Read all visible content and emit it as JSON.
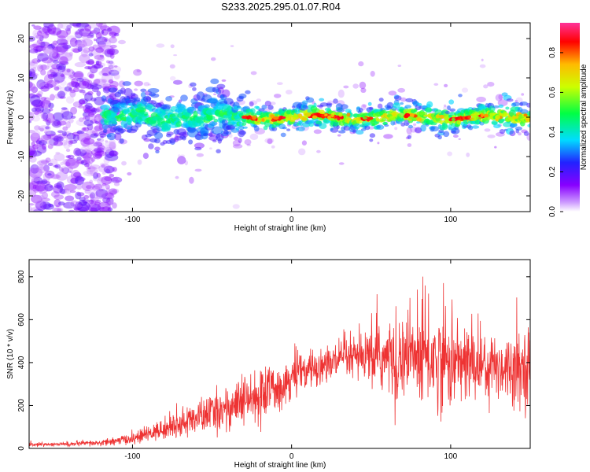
{
  "title": "S233.2025.295.01.07.R04",
  "chart_data": [
    {
      "type": "heatmap",
      "xlabel": "Height of straight line (km)",
      "ylabel": "Frequency (Hz)",
      "xlim": [
        -165,
        150
      ],
      "ylim": [
        -24,
        24
      ],
      "xticks": [
        -100,
        0,
        100
      ],
      "yticks": [
        -20,
        -10,
        0,
        10,
        20
      ],
      "colorbar": {
        "label": "Normalized spectral amplitude",
        "range": [
          0,
          0.95
        ],
        "ticks": [
          "0.0",
          "0.2",
          "0.4",
          "0.6",
          "0.8"
        ],
        "tick_values": [
          0,
          0.2,
          0.4,
          0.6,
          0.8
        ],
        "colormap": [
          "#ffffff",
          "#8800ff",
          "#2222ff",
          "#00ddff",
          "#00ff44",
          "#ccff00",
          "#ffbb00",
          "#ff0000",
          "#ff3399"
        ]
      },
      "regions": [
        {
          "x_range": [
            -165,
            -110
          ],
          "description_values": {
            "freq_spread_hz": 24,
            "amplitude": 0.1
          }
        },
        {
          "x_range": [
            -115,
            -30
          ],
          "description_values": {
            "freq_center_hz": 0,
            "freq_spread_hz": 5,
            "amplitude": 0.3
          }
        },
        {
          "x_range": [
            -30,
            150
          ],
          "description_values": {
            "freq_center_hz": 0,
            "freq_spread_hz": 3,
            "amplitude": 0.9
          }
        }
      ]
    },
    {
      "type": "line",
      "xlabel": "Height of straight line (km)",
      "ylabel": "SNR (10 * v/v)",
      "xlim": [
        -165,
        150
      ],
      "ylim": [
        0,
        880
      ],
      "xticks": [
        -100,
        0,
        100
      ],
      "yticks": [
        0,
        200,
        400,
        600,
        800
      ],
      "color": "#ee3333",
      "envelope": {
        "x": [
          -165,
          -140,
          -120,
          -100,
          -80,
          -60,
          -40,
          -20,
          0,
          20,
          40,
          60,
          80,
          100,
          120,
          140,
          150
        ],
        "mean": [
          18,
          20,
          25,
          45,
          90,
          140,
          190,
          240,
          330,
          390,
          420,
          420,
          430,
          400,
          390,
          380,
          390
        ],
        "noise": [
          6,
          8,
          10,
          18,
          35,
          55,
          75,
          90,
          70,
          60,
          70,
          120,
          180,
          150,
          120,
          110,
          120
        ]
      }
    }
  ]
}
